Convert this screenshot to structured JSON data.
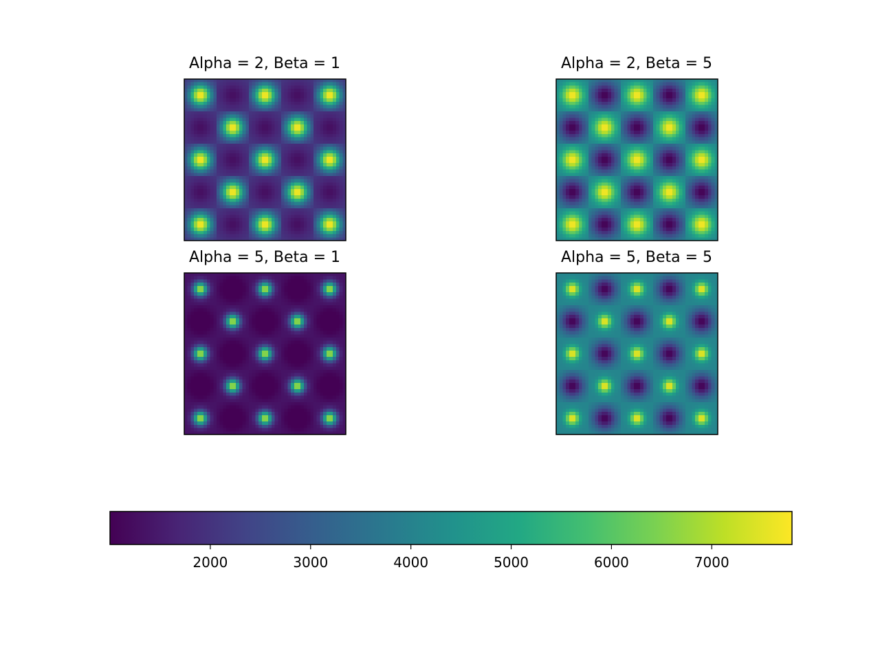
{
  "chart_data": [
    {
      "type": "heatmap",
      "title": "Alpha = 2, Beta = 1",
      "alpha": 2,
      "beta": 1,
      "grid": "5x5 peak lattice",
      "value_range": [
        1000,
        7800
      ],
      "axes_visible": false
    },
    {
      "type": "heatmap",
      "title": "Alpha = 2, Beta = 5",
      "alpha": 2,
      "beta": 5,
      "grid": "5x5 peak lattice",
      "value_range": [
        1000,
        7800
      ],
      "axes_visible": false
    },
    {
      "type": "heatmap",
      "title": "Alpha = 5, Beta = 1",
      "alpha": 5,
      "beta": 1,
      "grid": "5x5 peak lattice",
      "value_range": [
        1000,
        7800
      ],
      "axes_visible": false
    },
    {
      "type": "heatmap",
      "title": "Alpha = 5, Beta = 5",
      "alpha": 5,
      "beta": 5,
      "grid": "5x5 peak lattice",
      "value_range": [
        1000,
        7800
      ],
      "axes_visible": false
    }
  ],
  "colorbar": {
    "colormap": "viridis",
    "orientation": "horizontal",
    "range": [
      1000,
      7800
    ],
    "ticks": [
      2000,
      3000,
      4000,
      5000,
      6000,
      7000
    ],
    "tick_labels": [
      "2000",
      "3000",
      "4000",
      "5000",
      "6000",
      "7000"
    ]
  }
}
